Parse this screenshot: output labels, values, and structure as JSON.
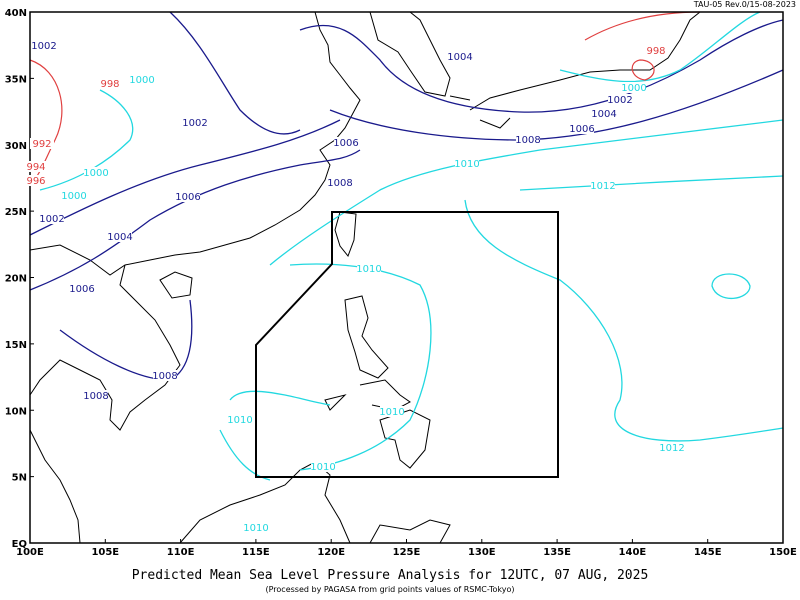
{
  "header": {
    "revision": "TAU-05 Rev.0/15-08-2023"
  },
  "axes": {
    "lon_labels": [
      "100E",
      "105E",
      "110E",
      "115E",
      "120E",
      "125E",
      "130E",
      "135E",
      "140E",
      "145E",
      "150E"
    ],
    "lat_labels": [
      "EQ",
      "5N",
      "10N",
      "15N",
      "20N",
      "25N",
      "30N",
      "35N",
      "40N"
    ]
  },
  "contour_labels": [
    {
      "text": "1002",
      "color": "#1a1a8c"
    },
    {
      "text": "1000",
      "color": "#22d8e0"
    },
    {
      "text": "998",
      "color": "#e04040"
    },
    {
      "text": "1002",
      "color": "#1a1a8c"
    },
    {
      "text": "992",
      "color": "#e04040"
    },
    {
      "text": "994",
      "color": "#e04040"
    },
    {
      "text": "996",
      "color": "#e04040"
    },
    {
      "text": "1000",
      "color": "#22d8e0"
    },
    {
      "text": "1000",
      "color": "#22d8e0"
    },
    {
      "text": "1002",
      "color": "#1a1a8c"
    },
    {
      "text": "1006",
      "color": "#1a1a8c"
    },
    {
      "text": "1004",
      "color": "#1a1a8c"
    },
    {
      "text": "1006",
      "color": "#1a1a8c"
    },
    {
      "text": "1008",
      "color": "#1a1a8c"
    },
    {
      "text": "1008",
      "color": "#1a1a8c"
    },
    {
      "text": "1006",
      "color": "#1a1a8c"
    },
    {
      "text": "1008",
      "color": "#1a1a8c"
    },
    {
      "text": "1004",
      "color": "#1a1a8c"
    },
    {
      "text": "998",
      "color": "#e04040"
    },
    {
      "text": "1000",
      "color": "#22d8e0"
    },
    {
      "text": "1002",
      "color": "#1a1a8c"
    },
    {
      "text": "1004",
      "color": "#1a1a8c"
    },
    {
      "text": "1006",
      "color": "#1a1a8c"
    },
    {
      "text": "1008",
      "color": "#1a1a8c"
    },
    {
      "text": "1010",
      "color": "#22d8e0"
    },
    {
      "text": "1012",
      "color": "#22d8e0"
    },
    {
      "text": "1010",
      "color": "#22d8e0"
    },
    {
      "text": "1010",
      "color": "#22d8e0"
    },
    {
      "text": "1010",
      "color": "#22d8e0"
    },
    {
      "text": "1010",
      "color": "#22d8e0"
    },
    {
      "text": "1010",
      "color": "#22d8e0"
    },
    {
      "text": "1012",
      "color": "#22d8e0"
    }
  ],
  "title": "Predicted Mean Sea Level Pressure Analysis for 12UTC, 07 AUG, 2025",
  "subtitle": "(Processed by PAGASA from grid points values of RSMC-Tokyo)"
}
